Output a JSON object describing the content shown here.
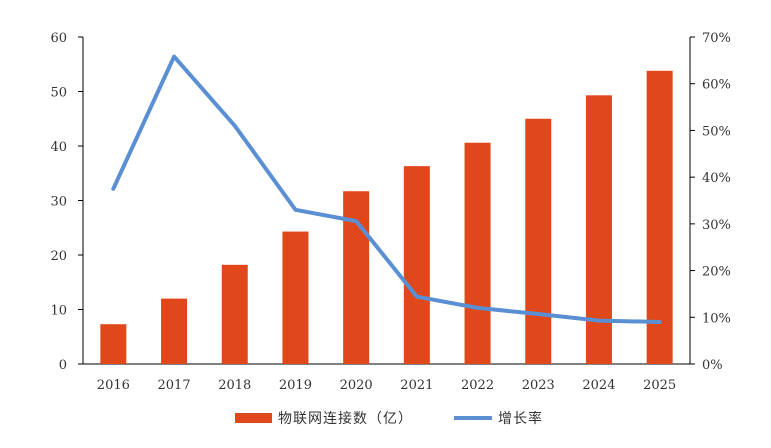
{
  "chart_data": {
    "type": "bar",
    "categories": [
      "2016",
      "2017",
      "2018",
      "2019",
      "2020",
      "2021",
      "2022",
      "2023",
      "2024",
      "2025"
    ],
    "series": [
      {
        "name": "物联网连接数（亿）",
        "type": "bar",
        "axis": "left",
        "color": "#E0471B",
        "values": [
          7.3,
          12.0,
          18.2,
          24.3,
          31.7,
          36.3,
          40.6,
          45.0,
          49.3,
          53.8
        ]
      },
      {
        "name": "增长率",
        "type": "line",
        "axis": "right",
        "color": "#5B8FD3",
        "values": [
          0.375,
          0.658,
          0.51,
          0.33,
          0.306,
          0.144,
          0.12,
          0.107,
          0.093,
          0.09
        ]
      }
    ],
    "y_left": {
      "ylim": [
        0,
        60
      ],
      "ticks": [
        "0",
        "10",
        "20",
        "30",
        "40",
        "50",
        "60"
      ]
    },
    "y_right": {
      "ylim": [
        0,
        0.7
      ],
      "ticks": [
        "0%",
        "10%",
        "20%",
        "30%",
        "40%",
        "50%",
        "60%",
        "70%"
      ]
    },
    "grid": false,
    "legend": "bottom"
  }
}
